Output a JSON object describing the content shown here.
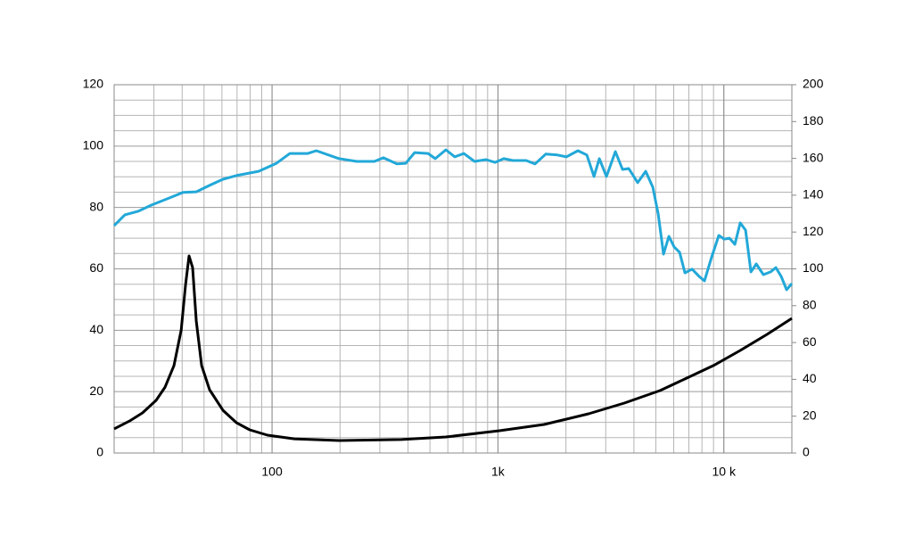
{
  "chart_data": {
    "type": "line",
    "log_x": true,
    "grid": true,
    "minor_grid": true,
    "xlim": [
      20,
      20000
    ],
    "xticks": [
      100,
      {
        "value": 1000,
        "label": "1k"
      },
      {
        "value": 10000,
        "label": "10 k"
      }
    ],
    "ylim": [
      0,
      120
    ],
    "yticks": [
      0,
      20,
      40,
      60,
      80,
      100,
      120
    ],
    "y2lim": [
      0,
      200
    ],
    "y2ticks": [
      0,
      20,
      40,
      60,
      80,
      100,
      120,
      140,
      160,
      180,
      200
    ],
    "series": [
      {
        "color": "#22a8d8",
        "axis": "y",
        "x": [
          20,
          22.3,
          25.6,
          29.3,
          35.1,
          40.3,
          46.2,
          52.9,
          60.6,
          69.5,
          87.2,
          104.6,
          120,
          144,
          157,
          198,
          237,
          284,
          311,
          357,
          391,
          428,
          491,
          528,
          588,
          644,
          706,
          787,
          886,
          970,
          1062,
          1164,
          1334,
          1460,
          1628,
          1833,
          2007,
          2260,
          2475,
          2662,
          2811,
          3022,
          3309,
          3560,
          3793,
          4155,
          4509,
          4847,
          5119,
          5406,
          5709,
          6030,
          6368,
          6725,
          7230,
          7776,
          8210,
          8835,
          9500,
          10030,
          10600,
          11190,
          11820,
          12480,
          13180,
          13920,
          14970,
          16100,
          17000,
          17950,
          18960,
          20000
        ],
        "values": [
          74.1,
          77.6,
          78.8,
          80.8,
          83.1,
          84.9,
          85.1,
          87.2,
          89.2,
          90.4,
          91.8,
          94.4,
          97.6,
          97.6,
          98.5,
          95.9,
          95.0,
          95.0,
          96.2,
          94.2,
          94.4,
          97.9,
          97.6,
          95.9,
          98.8,
          96.5,
          97.6,
          95.0,
          95.6,
          94.7,
          95.9,
          95.3,
          95.3,
          94.2,
          97.4,
          97.1,
          96.5,
          98.5,
          97.1,
          90.1,
          95.9,
          90.1,
          98.2,
          92.4,
          92.7,
          88.1,
          91.8,
          86.6,
          77.9,
          64.8,
          70.6,
          67.1,
          65.4,
          58.7,
          59.9,
          57.5,
          56.1,
          63.9,
          70.9,
          69.7,
          70.0,
          68.0,
          75.0,
          72.6,
          59.0,
          61.6,
          58.1,
          59.0,
          60.4,
          57.5,
          53.2,
          55.2
        ]
      },
      {
        "color": "#000000",
        "axis": "y2",
        "x": [
          20,
          23.4,
          26.7,
          30.7,
          33.6,
          36.8,
          39.6,
          41.4,
          42.9,
          44.5,
          46.2,
          48.8,
          52.9,
          60.6,
          69.5,
          79.6,
          95.5,
          125.5,
          198,
          373,
          588,
          1015,
          1600,
          2520,
          3626,
          5213,
          6850,
          9000,
          11820,
          15520,
          20000
        ],
        "values": [
          13.1,
          17.4,
          21.8,
          28.6,
          35.8,
          47.5,
          66.8,
          91.0,
          107.0,
          100.7,
          71.7,
          47.5,
          34.4,
          23.2,
          16.5,
          12.6,
          9.7,
          7.7,
          6.8,
          7.3,
          8.7,
          12.1,
          15.5,
          21.3,
          27.1,
          33.9,
          40.7,
          47.5,
          55.7,
          64.4,
          73.1
        ]
      }
    ]
  }
}
